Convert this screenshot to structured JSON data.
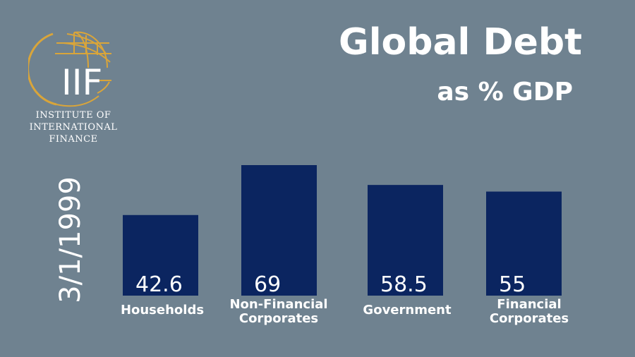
{
  "title": "Global Debt",
  "subtitle": "as % GDP",
  "date": "3/1/1999",
  "logo": {
    "mark": "IIF",
    "lines": [
      "Institute of",
      "International",
      "Finance"
    ]
  },
  "colors": {
    "background": "#6f8290",
    "bar": "#0b2560",
    "gold": "#d9a53a",
    "text": "#ffffff"
  },
  "chart_data": {
    "type": "bar",
    "title": "Global Debt as % GDP",
    "categories": [
      [
        "Households"
      ],
      [
        "Non-Financial",
        "Corporates"
      ],
      [
        "Government"
      ],
      [
        "Financial",
        "Corporates"
      ]
    ],
    "values": [
      42.6,
      69,
      58.5,
      55
    ],
    "value_labels": [
      "42.6",
      "69",
      "58.5",
      "55"
    ],
    "xlabel": "",
    "ylabel": "",
    "ylim": [
      0,
      69
    ],
    "grid": false
  }
}
